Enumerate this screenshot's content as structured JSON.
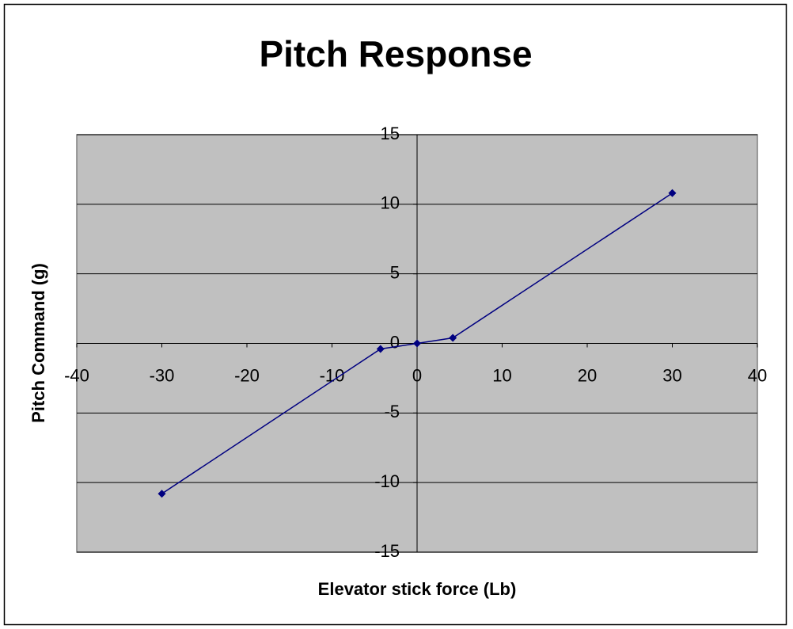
{
  "chart_data": {
    "type": "line",
    "title": "Pitch Response",
    "x_label": "Elevator stick force (Lb)",
    "y_label": "Pitch Command (g)",
    "x": [
      -30,
      -4.3,
      0,
      4.2,
      30
    ],
    "values": [
      -10.8,
      -0.4,
      0,
      0.4,
      10.8
    ],
    "color": "#000080",
    "plot_background": "#c0c0c0",
    "xlim": [
      -40,
      40
    ],
    "xticks": [
      -40,
      -30,
      -20,
      -10,
      0,
      10,
      20,
      30,
      40
    ],
    "ylim": [
      -15,
      15
    ],
    "yticks": [
      -15,
      -10,
      -5,
      0,
      5,
      10,
      15
    ],
    "grid": true
  }
}
